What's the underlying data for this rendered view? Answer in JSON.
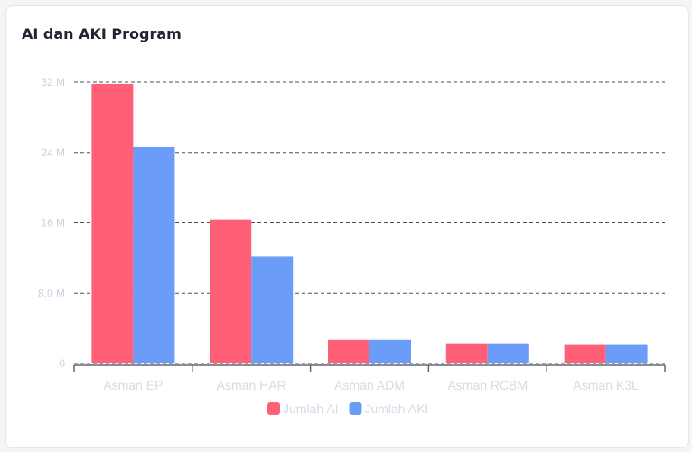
{
  "chart_data": {
    "type": "bar",
    "title": "AI dan AKI Program",
    "categories": [
      "Asman EP",
      "Asman HAR",
      "Asman ADM",
      "Asman RCBM",
      "Asman K3L"
    ],
    "series": [
      {
        "name": "Jumlah AI",
        "color": "#ff6078",
        "values": [
          31.8,
          16.4,
          2.7,
          2.3,
          2.1
        ]
      },
      {
        "name": "Jumlah AKI",
        "color": "#6a9cf8",
        "values": [
          24.6,
          12.2,
          2.7,
          2.3,
          2.1
        ]
      }
    ],
    "yticks": [
      {
        "v": 0,
        "label": "0"
      },
      {
        "v": 8,
        "label": "8,0 M"
      },
      {
        "v": 16,
        "label": "16 M"
      },
      {
        "v": 24,
        "label": "24 M"
      },
      {
        "v": 32,
        "label": "32 M"
      }
    ],
    "ylim": [
      0,
      32
    ],
    "grid": true,
    "legend": "bottom"
  }
}
